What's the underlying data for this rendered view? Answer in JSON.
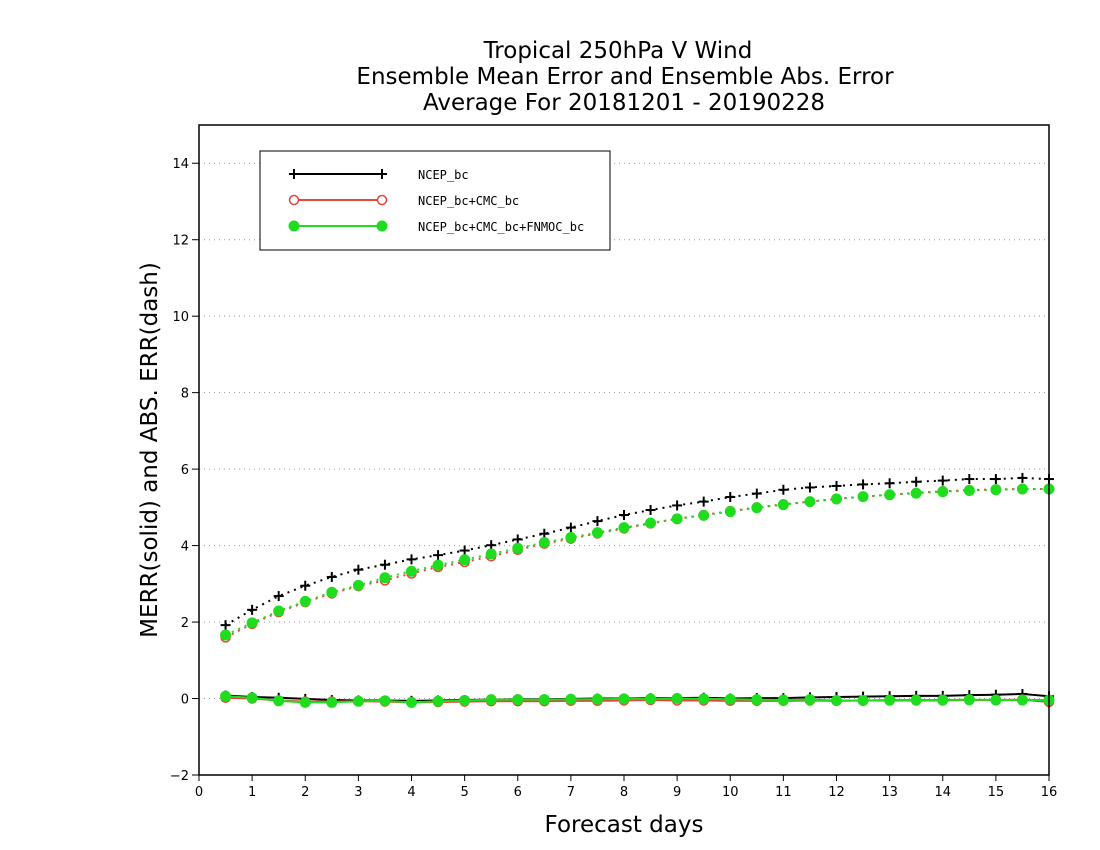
{
  "chart_data": {
    "type": "line",
    "title": [
      "Tropical 250hPa V Wind",
      "Ensemble Mean Error and Ensemble Abs. Error",
      "Average For 20181201 - 20190228"
    ],
    "xlabel": "Forecast days",
    "ylabel": "MERR(solid) and ABS. ERR(dash)",
    "xlim": [
      0,
      16
    ],
    "ylim": [
      -2,
      15
    ],
    "xticks": [
      0,
      1,
      2,
      3,
      4,
      5,
      6,
      7,
      8,
      9,
      10,
      11,
      12,
      13,
      14,
      15,
      16
    ],
    "yticks": [
      -2,
      0,
      2,
      4,
      6,
      8,
      10,
      12,
      14
    ],
    "grid": "horizontal dotted",
    "legend_position": "top-left",
    "x": [
      0.5,
      1,
      1.5,
      2,
      2.5,
      3,
      3.5,
      4,
      4.5,
      5,
      5.5,
      6,
      6.5,
      7,
      7.5,
      8,
      8.5,
      9,
      9.5,
      10,
      10.5,
      11,
      11.5,
      12,
      12.5,
      13,
      13.5,
      14,
      14.5,
      15,
      15.5,
      16
    ],
    "series": [
      {
        "name": "NCEP_bc",
        "color": "#000000",
        "marker": "plus",
        "merr": [
          0.08,
          0.04,
          0.02,
          -0.01,
          -0.04,
          -0.05,
          -0.05,
          -0.06,
          -0.05,
          -0.04,
          -0.03,
          -0.02,
          -0.02,
          -0.01,
          0.0,
          0.0,
          0.01,
          0.01,
          0.02,
          0.0,
          0.01,
          0.01,
          0.03,
          0.04,
          0.05,
          0.06,
          0.07,
          0.07,
          0.09,
          0.1,
          0.12,
          0.06
        ],
        "abs_err": [
          1.92,
          2.32,
          2.68,
          2.95,
          3.18,
          3.37,
          3.5,
          3.64,
          3.75,
          3.87,
          4.01,
          4.16,
          4.31,
          4.47,
          4.64,
          4.8,
          4.93,
          5.05,
          5.15,
          5.27,
          5.36,
          5.46,
          5.52,
          5.56,
          5.6,
          5.63,
          5.67,
          5.7,
          5.74,
          5.74,
          5.77,
          5.74
        ]
      },
      {
        "name": "NCEP_bc+CMC_bc",
        "color": "#e8443a",
        "marker": "circle-open",
        "merr": [
          0.02,
          0.0,
          -0.05,
          -0.08,
          -0.08,
          -0.07,
          -0.08,
          -0.1,
          -0.09,
          -0.08,
          -0.07,
          -0.07,
          -0.07,
          -0.06,
          -0.06,
          -0.05,
          -0.04,
          -0.05,
          -0.05,
          -0.06,
          -0.06,
          -0.06,
          -0.05,
          -0.06,
          -0.05,
          -0.05,
          -0.05,
          -0.05,
          -0.04,
          -0.04,
          -0.03,
          -0.09
        ],
        "abs_err": [
          1.6,
          1.95,
          2.26,
          2.52,
          2.75,
          2.94,
          3.09,
          3.27,
          3.44,
          3.57,
          3.72,
          3.89,
          4.05,
          4.18,
          4.32,
          4.45,
          4.58,
          4.7,
          4.8,
          4.9,
          5.0,
          5.08,
          5.15,
          5.22,
          5.28,
          5.33,
          5.38,
          5.42,
          5.45,
          5.47,
          5.48,
          5.48
        ]
      },
      {
        "name": "NCEP_bc+CMC_bc+FNMOC_bc",
        "color": "#1fdc1f",
        "marker": "circle-filled",
        "merr": [
          0.06,
          0.02,
          -0.06,
          -0.1,
          -0.1,
          -0.07,
          -0.06,
          -0.1,
          -0.07,
          -0.05,
          -0.03,
          -0.03,
          -0.03,
          -0.02,
          -0.02,
          -0.01,
          -0.01,
          0.0,
          -0.01,
          -0.02,
          -0.03,
          -0.04,
          -0.03,
          -0.05,
          -0.05,
          -0.04,
          -0.04,
          -0.04,
          -0.03,
          -0.04,
          -0.04,
          -0.04
        ],
        "abs_err": [
          1.66,
          1.98,
          2.29,
          2.54,
          2.78,
          2.96,
          3.16,
          3.33,
          3.49,
          3.63,
          3.78,
          3.93,
          4.08,
          4.21,
          4.34,
          4.47,
          4.59,
          4.7,
          4.79,
          4.89,
          4.99,
          5.07,
          5.15,
          5.22,
          5.28,
          5.33,
          5.37,
          5.41,
          5.44,
          5.46,
          5.48,
          5.48
        ]
      }
    ]
  }
}
